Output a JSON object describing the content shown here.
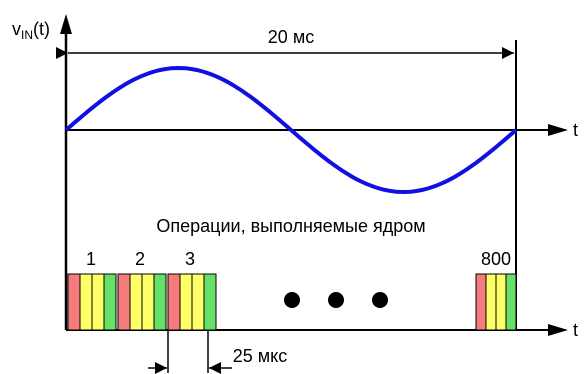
{
  "diagram": {
    "y_axis_label": {
      "main": "v",
      "subscript": "IN",
      "suffix": "(t)"
    },
    "x_axis_label_top": "t",
    "x_axis_label_bottom": "t",
    "period_label": "20 мс",
    "operations_caption": "Операции, выполняемые ядром",
    "block_labels": [
      "1",
      "2",
      "3",
      "800"
    ],
    "interval_label": "25 мкс",
    "colors": {
      "sine": "#1010e0",
      "block_red": "#f47c7c",
      "block_yellow": "#ffff66",
      "block_green": "#66e066"
    }
  }
}
